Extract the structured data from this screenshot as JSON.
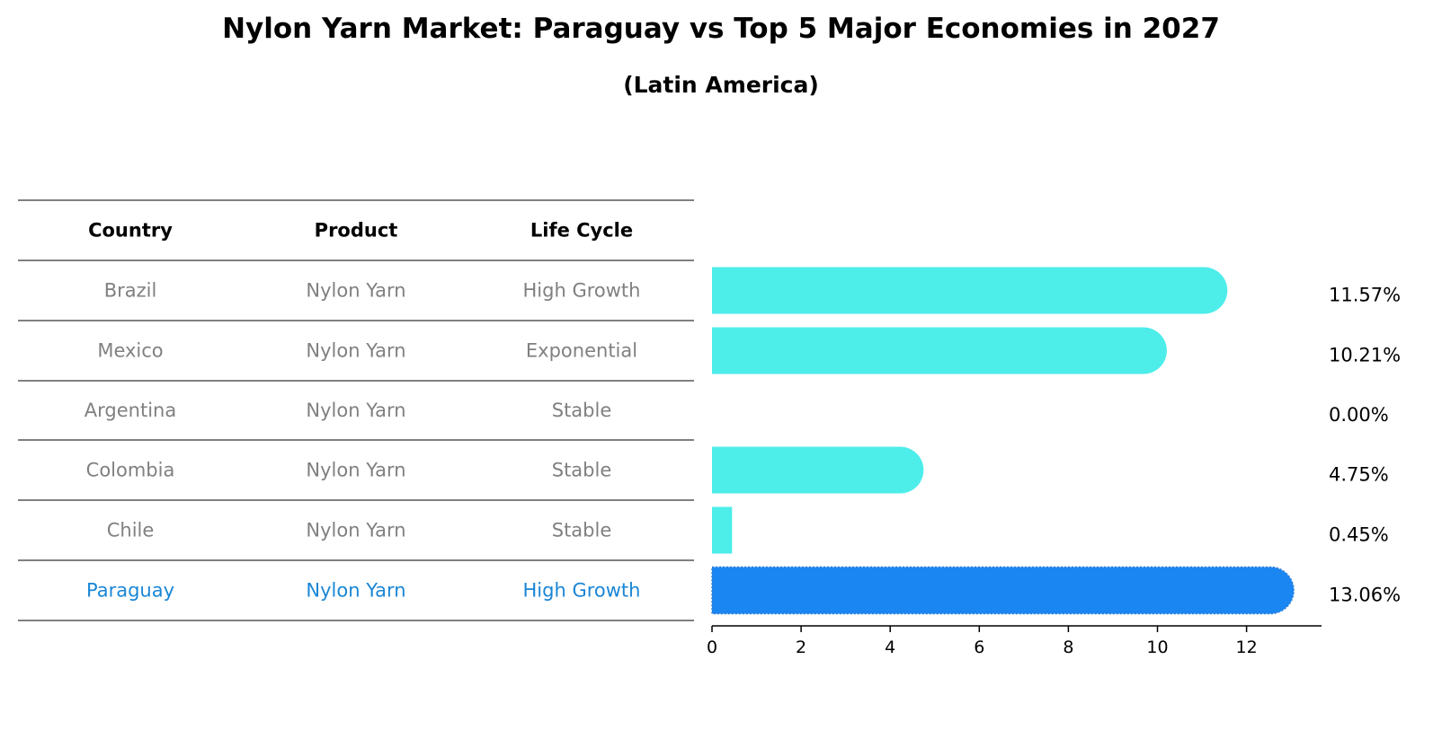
{
  "title": "Nylon Yarn Market: Paraguay vs Top 5 Major Economies in 2027",
  "subtitle": "(Latin America)",
  "table": {
    "headers": [
      "Country",
      "Product",
      "Life Cycle"
    ],
    "rows": [
      [
        "Brazil",
        "Nylon Yarn",
        "High Growth"
      ],
      [
        "Mexico",
        "Nylon Yarn",
        "Exponential"
      ],
      [
        "Argentina",
        "Nylon Yarn",
        "Stable"
      ],
      [
        "Colombia",
        "Nylon Yarn",
        "Stable"
      ],
      [
        "Chile",
        "Nylon Yarn",
        "Stable"
      ],
      [
        "Paraguay",
        "Nylon Yarn",
        "High Growth"
      ]
    ],
    "highlight_row": 5
  },
  "colors": {
    "bar": "#4DEDEA",
    "highlight": "#1A86F2",
    "muted_text": "#808080",
    "highlight_text": "#1A86D6"
  },
  "chart_data": {
    "type": "bar",
    "orientation": "horizontal",
    "title": "Nylon Yarn Market: Paraguay vs Top 5 Major Economies in 2027",
    "subtitle": "(Latin America)",
    "categories": [
      "Brazil",
      "Mexico",
      "Argentina",
      "Colombia",
      "Chile",
      "Paraguay"
    ],
    "values": [
      11.57,
      10.21,
      0.0,
      4.75,
      0.45,
      13.06
    ],
    "value_labels": [
      "11.57%",
      "10.21%",
      "0.00%",
      "4.75%",
      "0.45%",
      "13.06%"
    ],
    "xlim": [
      0,
      13.7
    ],
    "xticks": [
      0,
      2,
      4,
      6,
      8,
      10,
      12
    ],
    "grid": false,
    "highlight": "Paraguay"
  }
}
